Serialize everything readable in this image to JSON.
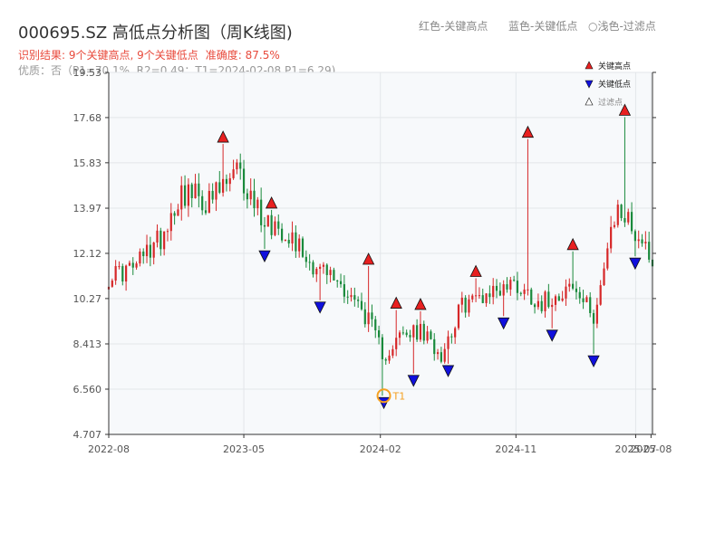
{
  "header": {
    "title": "000695.SZ 高低点分析图（周K线图)",
    "legend_red": "红色-关键高点",
    "legend_blue": "蓝色-关键低点",
    "legend_light": "○浅色-过滤点",
    "result": "识别结果: 9个关键高点, 9个关键低点",
    "accuracy": "准确度: 87.5%",
    "quality": "优质：否（P1=70.1%, R2=0.49；T1=2024-02-08 P1=6.29)"
  },
  "colors": {
    "up": "#d62728",
    "down": "#1a8a3c",
    "high_marker": "#e82020",
    "low_marker": "#1010dd",
    "t1": "#f5a020",
    "plot_bg": "#f7f9fb"
  },
  "chart_data": {
    "type": "candlestick",
    "title": "000695.SZ 高低点分析图（周K线图)",
    "y_ticks": [
      "4.707",
      "6.560",
      "8.413",
      "10.27",
      "12.12",
      "13.97",
      "15.83",
      "17.68",
      "19.53"
    ],
    "ylim": [
      4.707,
      19.53
    ],
    "x_ticks": [
      {
        "label": "2022-08",
        "date": "2022-08-01"
      },
      {
        "label": "2023-05",
        "date": "2023-05-01"
      },
      {
        "label": "2024-02",
        "date": "2024-02-01"
      },
      {
        "label": "2024-11",
        "date": "2024-11-01"
      },
      {
        "label": "2025-07",
        "date": "2025-07-01"
      },
      {
        "label": "2025-08",
        "date": "2025-08-01"
      }
    ],
    "xlim": [
      "2022-08-01",
      "2025-08-04"
    ],
    "grid": true,
    "legend_position": "top-right",
    "legend": [
      {
        "label": "关键高点",
        "marker": "high"
      },
      {
        "label": "关键低点",
        "marker": "low"
      },
      {
        "label": "过滤点",
        "marker": "filtered"
      }
    ],
    "anchors": [
      {
        "date": "2022-08-01",
        "close": 11.2
      },
      {
        "date": "2022-09-19",
        "close": 11.5
      },
      {
        "date": "2022-11-14",
        "close": 12.8
      },
      {
        "date": "2022-12-26",
        "close": 14.7
      },
      {
        "date": "2023-02-20",
        "close": 14.2
      },
      {
        "date": "2023-04-17",
        "close": 15.4
      },
      {
        "date": "2023-06-12",
        "close": 13.5
      },
      {
        "date": "2023-07-31",
        "close": 13.0
      },
      {
        "date": "2023-09-11",
        "close": 11.8
      },
      {
        "date": "2023-10-30",
        "close": 11.1
      },
      {
        "date": "2023-12-04",
        "close": 10.4
      },
      {
        "date": "2024-01-08",
        "close": 9.4
      },
      {
        "date": "2024-02-08",
        "close": 7.9
      },
      {
        "date": "2024-03-11",
        "close": 8.7
      },
      {
        "date": "2024-04-22",
        "close": 8.9
      },
      {
        "date": "2024-06-03",
        "close": 8.0
      },
      {
        "date": "2024-07-15",
        "close": 10.0
      },
      {
        "date": "2024-09-02",
        "close": 10.5
      },
      {
        "date": "2024-10-28",
        "close": 10.9
      },
      {
        "date": "2024-12-23",
        "close": 10.1
      },
      {
        "date": "2025-02-17",
        "close": 10.8
      },
      {
        "date": "2025-04-07",
        "close": 9.6
      },
      {
        "date": "2025-05-26",
        "close": 14.0
      },
      {
        "date": "2025-08-04",
        "close": 12.0
      }
    ],
    "key_highs": [
      {
        "date": "2023-03-20",
        "price": 16.6
      },
      {
        "date": "2023-06-26",
        "price": 13.9
      },
      {
        "date": "2024-01-08",
        "price": 11.6
      },
      {
        "date": "2024-03-04",
        "price": 9.8
      },
      {
        "date": "2024-04-22",
        "price": 9.75
      },
      {
        "date": "2024-08-12",
        "price": 11.1
      },
      {
        "date": "2024-11-25",
        "price": 16.8
      },
      {
        "date": "2025-02-24",
        "price": 12.2
      },
      {
        "date": "2025-06-09",
        "price": 17.7
      }
    ],
    "key_lows": [
      {
        "date": "2023-06-12",
        "price": 12.3
      },
      {
        "date": "2023-10-02",
        "price": 10.2
      },
      {
        "date": "2024-02-08",
        "price": 6.29
      },
      {
        "date": "2024-04-08",
        "price": 7.2
      },
      {
        "date": "2024-06-17",
        "price": 7.6
      },
      {
        "date": "2024-10-07",
        "price": 9.55
      },
      {
        "date": "2025-01-13",
        "price": 9.05
      },
      {
        "date": "2025-04-07",
        "price": 8.0
      },
      {
        "date": "2025-06-30",
        "price": 12.0
      }
    ],
    "t1": {
      "label": "T1",
      "date": "2024-02-08",
      "price": 6.29
    }
  }
}
